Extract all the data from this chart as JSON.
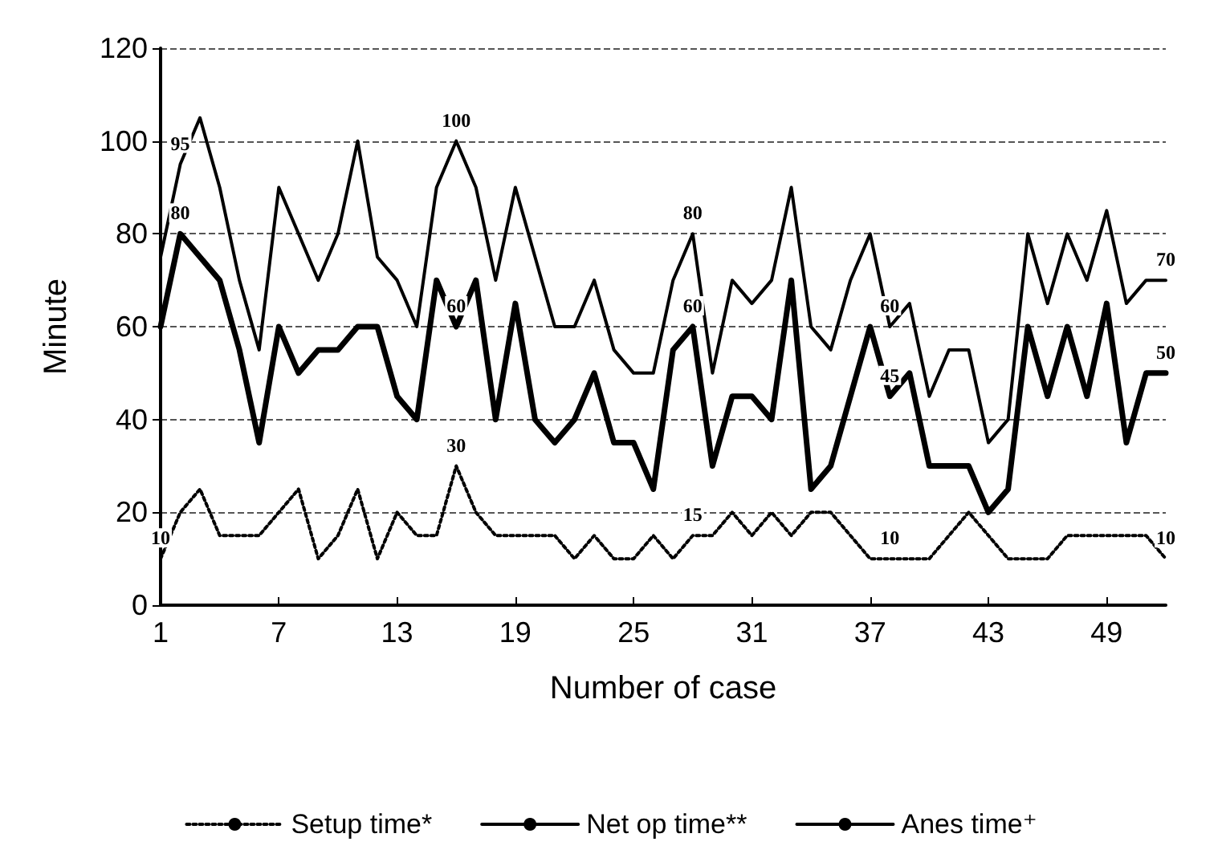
{
  "chart_data": {
    "type": "line",
    "xlabel": "Number of case",
    "ylabel": "Minute",
    "x": [
      1,
      2,
      3,
      4,
      5,
      6,
      7,
      8,
      9,
      10,
      11,
      12,
      13,
      14,
      15,
      16,
      17,
      18,
      19,
      20,
      21,
      22,
      23,
      24,
      25,
      26,
      27,
      28,
      29,
      30,
      31,
      32,
      33,
      34,
      35,
      36,
      37,
      38,
      39,
      40,
      41,
      42,
      43,
      44,
      45,
      46,
      47,
      48,
      49,
      50,
      51,
      52
    ],
    "xlim": [
      1,
      52
    ],
    "xticks": [
      1,
      7,
      13,
      19,
      25,
      31,
      37,
      43,
      49
    ],
    "ylim": [
      0,
      120
    ],
    "yticks": [
      0,
      20,
      40,
      60,
      80,
      100,
      120
    ],
    "grid": "y",
    "legend": "bottom",
    "marker": "none",
    "series": [
      {
        "name": "Setup time*",
        "color": "#000000",
        "line_style": "dotted",
        "values": [
          10,
          20,
          25,
          15,
          15,
          15,
          20,
          25,
          10,
          15,
          25,
          10,
          20,
          15,
          15,
          30,
          20,
          15,
          15,
          15,
          15,
          10,
          15,
          10,
          10,
          15,
          10,
          15,
          15,
          20,
          15,
          20,
          15,
          20,
          20,
          15,
          10,
          10,
          10,
          10,
          15,
          20,
          15,
          10,
          10,
          10,
          15,
          15,
          15,
          15,
          15,
          10
        ],
        "value_labels": [
          "10",
          null,
          null,
          null,
          null,
          null,
          null,
          null,
          null,
          null,
          null,
          null,
          null,
          null,
          null,
          "30",
          null,
          null,
          null,
          null,
          null,
          null,
          null,
          null,
          null,
          null,
          null,
          "15",
          null,
          null,
          null,
          null,
          null,
          null,
          null,
          null,
          null,
          "10",
          null,
          null,
          null,
          null,
          null,
          null,
          null,
          null,
          null,
          null,
          null,
          null,
          null,
          "10"
        ]
      },
      {
        "name": "Net op time**",
        "color": "#000000",
        "line_style": "solid",
        "values": [
          60,
          80,
          75,
          70,
          55,
          35,
          60,
          50,
          55,
          55,
          60,
          60,
          45,
          40,
          70,
          60,
          70,
          40,
          65,
          40,
          35,
          40,
          50,
          35,
          35,
          25,
          55,
          60,
          30,
          45,
          45,
          40,
          70,
          25,
          30,
          45,
          60,
          45,
          50,
          30,
          30,
          30,
          20,
          25,
          60,
          45,
          60,
          45,
          65,
          35,
          50,
          50
        ],
        "value_labels": [
          null,
          "80",
          null,
          null,
          null,
          null,
          null,
          null,
          null,
          null,
          null,
          null,
          null,
          null,
          null,
          "60",
          null,
          null,
          null,
          null,
          null,
          null,
          null,
          null,
          null,
          null,
          null,
          "60",
          null,
          null,
          null,
          null,
          null,
          null,
          null,
          null,
          null,
          "45",
          null,
          null,
          null,
          null,
          null,
          null,
          null,
          null,
          null,
          null,
          null,
          null,
          null,
          "50"
        ]
      },
      {
        "name": "Anes time⁺",
        "color": "#000000",
        "line_style": "solid",
        "values": [
          75,
          95,
          105,
          90,
          70,
          55,
          90,
          80,
          70,
          80,
          100,
          75,
          70,
          60,
          90,
          100,
          90,
          70,
          90,
          75,
          60,
          60,
          70,
          55,
          50,
          50,
          70,
          80,
          50,
          70,
          65,
          70,
          90,
          60,
          55,
          70,
          80,
          60,
          65,
          45,
          55,
          55,
          35,
          40,
          80,
          65,
          80,
          70,
          85,
          65,
          70,
          70
        ],
        "value_labels": [
          null,
          "95",
          null,
          null,
          null,
          null,
          null,
          null,
          null,
          null,
          null,
          null,
          null,
          null,
          null,
          "100",
          null,
          null,
          null,
          null,
          null,
          null,
          null,
          null,
          null,
          null,
          null,
          "80",
          null,
          null,
          null,
          null,
          null,
          null,
          null,
          null,
          null,
          "60",
          null,
          null,
          null,
          null,
          null,
          null,
          null,
          null,
          null,
          null,
          null,
          null,
          null,
          "70"
        ]
      }
    ]
  }
}
